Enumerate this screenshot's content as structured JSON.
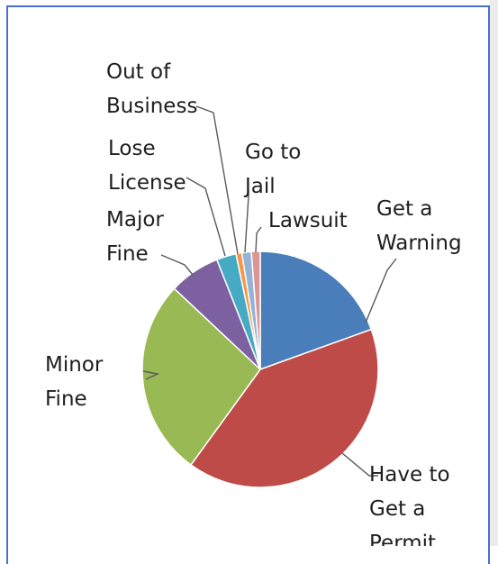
{
  "chart_data": {
    "type": "pie",
    "title": "",
    "legend": "none",
    "slices": [
      {
        "label": "Get a Warning",
        "lines": [
          "Get a",
          "Warning"
        ],
        "value": 19.5,
        "color": "#4a7ebb"
      },
      {
        "label": "Have to Get a Permit",
        "lines": [
          "Have to",
          "Get a",
          "Permit"
        ],
        "value": 40.5,
        "color": "#be4b48"
      },
      {
        "label": "Minor Fine",
        "lines": [
          "Minor",
          "Fine"
        ],
        "value": 27.0,
        "color": "#98b954"
      },
      {
        "label": "Major Fine",
        "lines": [
          "Major",
          "Fine"
        ],
        "value": 7.0,
        "color": "#7d60a0"
      },
      {
        "label": "Lose License",
        "lines": [
          "Lose",
          "License"
        ],
        "value": 2.7,
        "color": "#46aac4"
      },
      {
        "label": "Out of Business",
        "lines": [
          "Out of",
          "Business"
        ],
        "value": 0.8,
        "color": "#f79646"
      },
      {
        "label": "Go to Jail",
        "lines": [
          "Go to",
          "Jail"
        ],
        "value": 1.3,
        "color": "#95b3d7"
      },
      {
        "label": "Lawsuit",
        "lines": [
          "Lawsuit"
        ],
        "value": 1.2,
        "color": "#d99694"
      }
    ]
  }
}
